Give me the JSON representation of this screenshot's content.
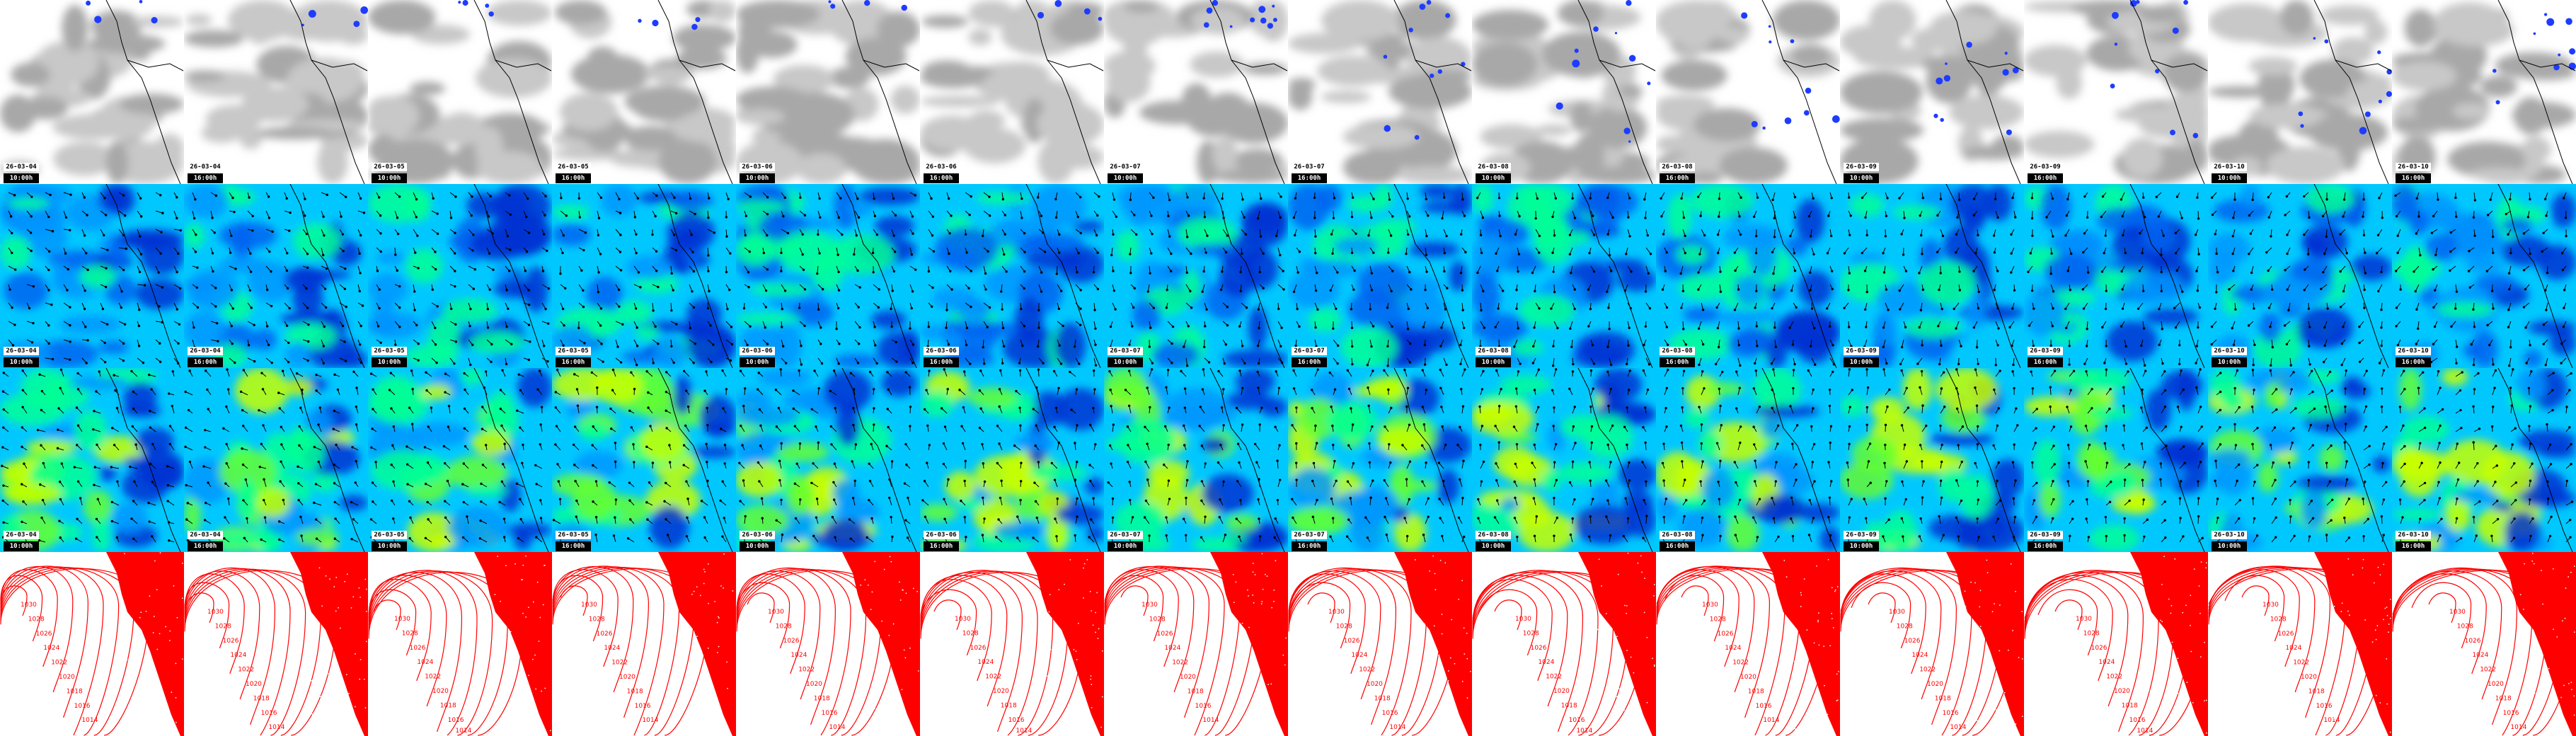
{
  "frames": [
    {
      "date": "26-03-04",
      "time": "10:00h"
    },
    {
      "date": "26-03-04",
      "time": "16:00h"
    },
    {
      "date": "26-03-05",
      "time": "10:00h"
    },
    {
      "date": "26-03-05",
      "time": "16:00h"
    },
    {
      "date": "26-03-06",
      "time": "10:00h"
    },
    {
      "date": "26-03-06",
      "time": "16:00h"
    },
    {
      "date": "26-03-07",
      "time": "10:00h"
    },
    {
      "date": "26-03-07",
      "time": "16:00h"
    },
    {
      "date": "26-03-08",
      "time": "10:00h"
    },
    {
      "date": "26-03-08",
      "time": "16:00h"
    },
    {
      "date": "26-03-09",
      "time": "10:00h"
    },
    {
      "date": "26-03-09",
      "time": "16:00h"
    },
    {
      "date": "26-03-10",
      "time": "10:00h"
    },
    {
      "date": "26-03-10",
      "time": "16:00h"
    }
  ],
  "rows": [
    {
      "type": "satellite-clouds",
      "labels": true
    },
    {
      "type": "wind-speed",
      "labels": true
    },
    {
      "type": "wind-speed-upper",
      "labels": true
    },
    {
      "type": "pressure-isobars",
      "labels": false
    }
  ],
  "isobar_levels": [
    "1030",
    "1028",
    "1026",
    "1024",
    "1022",
    "1020",
    "1018",
    "1016",
    "1014"
  ],
  "colors": {
    "cloud": "#b4b4b4",
    "precip": "#1e3cff",
    "wind_low": "#0032d2",
    "wind_mid": "#00c8ff",
    "wind_high": "#00ff96",
    "wind_max": "#c8ff00",
    "isobar": "#ff0000",
    "land_pressure": "#ff0000"
  }
}
